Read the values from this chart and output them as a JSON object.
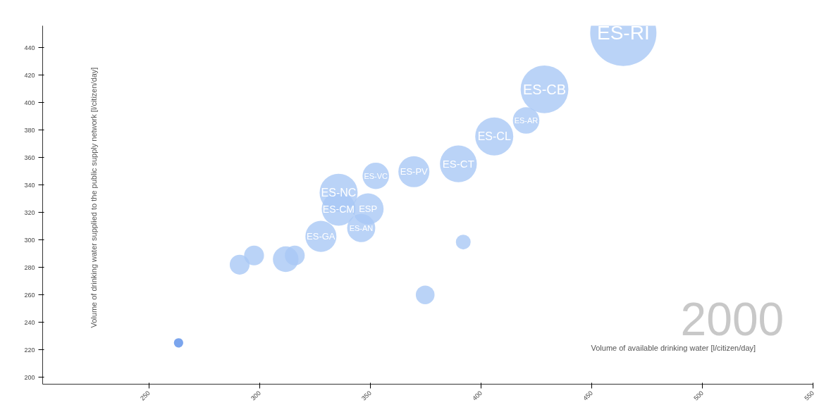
{
  "chart_data": {
    "type": "bubble",
    "xlabel": "Volume of available drinking water [l/citizen/day]",
    "ylabel": "Volume of drinking water supplied to the public supply network [l/citizen/day]",
    "x": [
      464.3,
      428.7,
      420.4,
      406,
      389.8,
      369.7,
      352.5,
      335.7,
      335.7,
      349,
      345.9,
      327.7,
      392,
      374.8,
      291,
      297.5,
      311.8,
      315.9,
      263.4
    ],
    "values": [
      450.8,
      409.7,
      387,
      375.4,
      355.4,
      349.7,
      346.7,
      334.4,
      322.6,
      322.6,
      308.7,
      302.6,
      298.5,
      260,
      282,
      288.7,
      286,
      288.7,
      225.1
    ],
    "sizes": [
      1,
      0.52,
      0.16,
      0.33,
      0.31,
      0.22,
      0.16,
      0.33,
      0.26,
      0.22,
      0.18,
      0.22,
      0.05,
      0.08,
      0.09,
      0.09,
      0.15,
      0.09,
      0.02
    ],
    "colors": [
      "#a9c8f5",
      "#a9c8f5",
      "#a9c8f5",
      "#a9c8f5",
      "#a9c8f5",
      "#a9c8f5",
      "#a9c8f5",
      "#a9c8f5",
      "#a9c8f5",
      "#a9c8f5",
      "#a9c8f5",
      "#a9c8f5",
      "#a9c8f5",
      "#a9c8f5",
      "#a9c8f5",
      "#a9c8f5",
      "#a9c8f5",
      "#a9c8f5",
      "#5a8fe8"
    ],
    "xlim": [
      202,
      550
    ],
    "ylim": [
      195,
      456
    ],
    "xticks": [
      250,
      300,
      350,
      400,
      450,
      500,
      550
    ],
    "yticks": [
      200,
      220,
      240,
      260,
      280,
      300,
      320,
      340,
      360,
      380,
      400,
      420,
      440
    ],
    "grid": false,
    "annotations": [
      {
        "text": "ES-RI",
        "x": 464.3,
        "y": 450.8
      },
      {
        "text": "ES-CB",
        "x": 428.7,
        "y": 409.7
      },
      {
        "text": "ES-AR",
        "x": 420.4,
        "y": 387
      },
      {
        "text": "ES-CL",
        "x": 406,
        "y": 375.4
      },
      {
        "text": "ES-CT",
        "x": 389.8,
        "y": 355.4
      },
      {
        "text": "ES-PV",
        "x": 369.7,
        "y": 349.7
      },
      {
        "text": "ES-VC",
        "x": 352.5,
        "y": 346.7
      },
      {
        "text": "ES-NC",
        "x": 335.7,
        "y": 334.4
      },
      {
        "text": "ES-CM",
        "x": 335.7,
        "y": 322.6
      },
      {
        "text": "ESP",
        "x": 349,
        "y": 322.6
      },
      {
        "text": "ES-AN",
        "x": 345.9,
        "y": 308.7
      },
      {
        "text": "ES-GA",
        "x": 327.7,
        "y": 302.6
      },
      "2000"
    ]
  }
}
